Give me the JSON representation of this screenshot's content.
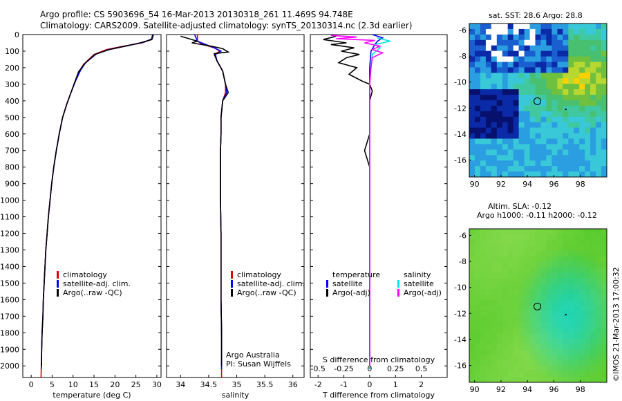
{
  "header": {
    "line1": "Argo profile: CS 5903696_54 16-Mar-2013 20130318_261 11.469S 94.748E",
    "line2": "Climatology: CARS2009. Satellite-adjusted climatology: synTS_20130314.nc (2.3d earlier)"
  },
  "colors": {
    "clim": "#e00000",
    "sat": "#0000ff",
    "argo": "#000000",
    "sat_cyan": "#00e0e0",
    "argo_mag": "#ff00ff"
  },
  "chart_data": [
    {
      "type": "line",
      "name": "temperature",
      "xlabel": "temperature (deg C)",
      "xlim": [
        -2,
        31
      ],
      "ylim": [
        0,
        2070
      ],
      "xticks": [
        "0",
        "5",
        "10",
        "15",
        "20",
        "25",
        "30"
      ],
      "xtick_values": [
        0,
        5,
        10,
        15,
        20,
        25,
        30
      ],
      "yticks": [
        "0",
        "100",
        "200",
        "300",
        "400",
        "500",
        "600",
        "700",
        "800",
        "900",
        "1000",
        "1100",
        "1200",
        "1300",
        "1400",
        "1500",
        "1600",
        "1700",
        "1800",
        "1900",
        "2000"
      ],
      "ytick_values": [
        0,
        100,
        200,
        300,
        400,
        500,
        600,
        700,
        800,
        900,
        1000,
        1100,
        1200,
        1300,
        1400,
        1500,
        1600,
        1700,
        1800,
        1900,
        2000
      ],
      "series": [
        {
          "name": "climatology",
          "color_key": "clim",
          "points": [
            [
              29.0,
              0
            ],
            [
              28.7,
              30
            ],
            [
              26.5,
              50
            ],
            [
              22,
              70
            ],
            [
              18,
              90
            ],
            [
              15,
              120
            ],
            [
              12.5,
              180
            ],
            [
              11.5,
              220
            ],
            [
              10.5,
              280
            ],
            [
              9.5,
              350
            ],
            [
              8.5,
              420
            ],
            [
              7.5,
              500
            ],
            [
              6.7,
              600
            ],
            [
              6.0,
              700
            ],
            [
              5.4,
              800
            ],
            [
              4.9,
              900
            ],
            [
              4.5,
              1000
            ],
            [
              4.1,
              1100
            ],
            [
              3.8,
              1200
            ],
            [
              3.5,
              1300
            ],
            [
              3.3,
              1400
            ],
            [
              3.1,
              1500
            ],
            [
              2.9,
              1600
            ],
            [
              2.8,
              1700
            ],
            [
              2.6,
              1800
            ],
            [
              2.5,
              1900
            ],
            [
              2.4,
              2000
            ],
            [
              2.35,
              2070
            ]
          ]
        },
        {
          "name": "satellite-adj. clim.",
          "color_key": "sat",
          "points": [
            [
              29.2,
              0
            ],
            [
              28.9,
              25
            ],
            [
              27,
              45
            ],
            [
              22.5,
              70
            ],
            [
              18.5,
              90
            ],
            [
              15.5,
              118
            ],
            [
              13,
              170
            ],
            [
              11.8,
              215
            ],
            [
              10.6,
              280
            ],
            [
              9.5,
              350
            ],
            [
              8.5,
              420
            ],
            [
              7.5,
              500
            ],
            [
              6.7,
              600
            ],
            [
              6.0,
              700
            ],
            [
              5.4,
              800
            ],
            [
              4.9,
              900
            ],
            [
              4.5,
              1000
            ],
            [
              4.1,
              1100
            ],
            [
              3.8,
              1200
            ],
            [
              3.5,
              1300
            ],
            [
              3.3,
              1400
            ],
            [
              3.1,
              1500
            ],
            [
              2.9,
              1600
            ],
            [
              2.8,
              1700
            ],
            [
              2.6,
              1800
            ],
            [
              2.5,
              1900
            ],
            [
              2.45,
              2000
            ],
            [
              2.4,
              2020
            ]
          ]
        },
        {
          "name": "Argo(..raw -QC)",
          "color_key": "argo",
          "points": [
            [
              29.0,
              0
            ],
            [
              28.8,
              30
            ],
            [
              26,
              50
            ],
            [
              22,
              72
            ],
            [
              18.5,
              92
            ],
            [
              15.2,
              120
            ],
            [
              12.8,
              175
            ],
            [
              11.3,
              225
            ],
            [
              10.5,
              280
            ],
            [
              9.5,
              350
            ],
            [
              8.5,
              420
            ],
            [
              7.5,
              500
            ],
            [
              6.7,
              600
            ],
            [
              6.0,
              700
            ],
            [
              5.4,
              800
            ],
            [
              4.9,
              900
            ],
            [
              4.5,
              1000
            ],
            [
              4.1,
              1100
            ],
            [
              3.8,
              1200
            ],
            [
              3.5,
              1300
            ],
            [
              3.3,
              1400
            ],
            [
              3.1,
              1500
            ],
            [
              2.9,
              1600
            ],
            [
              2.8,
              1700
            ],
            [
              2.6,
              1800
            ],
            [
              2.5,
              1900
            ],
            [
              2.45,
              2000
            ]
          ]
        }
      ],
      "legend": [
        "climatology",
        "satellite-adj. clim.",
        "Argo(..raw -QC)"
      ]
    },
    {
      "type": "line",
      "name": "salinity",
      "xlabel": "salinity",
      "xlim": [
        33.75,
        36.2
      ],
      "ylim": [
        0,
        2070
      ],
      "xticks": [
        "34",
        "34.5",
        "35",
        "35.5",
        "36"
      ],
      "xtick_values": [
        34,
        34.5,
        35,
        35.5,
        36
      ],
      "series": [
        {
          "name": "climatology",
          "color_key": "clim",
          "points": [
            [
              34.3,
              0
            ],
            [
              34.3,
              40
            ],
            [
              34.4,
              60
            ],
            [
              34.6,
              80
            ],
            [
              34.7,
              100
            ],
            [
              34.6,
              120
            ],
            [
              34.65,
              160
            ],
            [
              34.75,
              220
            ],
            [
              34.8,
              300
            ],
            [
              34.8,
              350
            ],
            [
              34.75,
              400
            ],
            [
              34.72,
              500
            ],
            [
              34.72,
              600
            ],
            [
              34.71,
              700
            ],
            [
              34.71,
              800
            ],
            [
              34.71,
              1000
            ],
            [
              34.72,
              1200
            ],
            [
              34.72,
              1400
            ],
            [
              34.72,
              1600
            ],
            [
              34.73,
              1800
            ],
            [
              34.73,
              2000
            ],
            [
              34.73,
              2070
            ]
          ]
        },
        {
          "name": "satellite-adj. clim.",
          "color_key": "sat",
          "points": [
            [
              34.25,
              0
            ],
            [
              34.3,
              40
            ],
            [
              34.45,
              60
            ],
            [
              34.6,
              80
            ],
            [
              34.72,
              100
            ],
            [
              34.62,
              120
            ],
            [
              34.65,
              160
            ],
            [
              34.75,
              220
            ],
            [
              34.8,
              300
            ],
            [
              34.82,
              350
            ],
            [
              34.75,
              400
            ],
            [
              34.72,
              500
            ],
            [
              34.72,
              600
            ],
            [
              34.71,
              700
            ],
            [
              34.71,
              800
            ],
            [
              34.71,
              1000
            ],
            [
              34.72,
              1200
            ],
            [
              34.72,
              1400
            ],
            [
              34.72,
              1600
            ],
            [
              34.73,
              1800
            ],
            [
              34.73,
              2000
            ],
            [
              34.73,
              2020
            ]
          ]
        },
        {
          "name": "Argo(..raw -QC)",
          "color_key": "argo",
          "points": [
            [
              34.0,
              10
            ],
            [
              34.15,
              25
            ],
            [
              34.3,
              40
            ],
            [
              34.2,
              50
            ],
            [
              34.55,
              70
            ],
            [
              34.75,
              85
            ],
            [
              34.85,
              105
            ],
            [
              34.6,
              115
            ],
            [
              34.65,
              160
            ],
            [
              34.75,
              220
            ],
            [
              34.8,
              300
            ],
            [
              34.85,
              350
            ],
            [
              34.75,
              400
            ],
            [
              34.72,
              500
            ],
            [
              34.72,
              600
            ],
            [
              34.71,
              700
            ],
            [
              34.71,
              800
            ],
            [
              34.71,
              1000
            ],
            [
              34.72,
              1200
            ],
            [
              34.72,
              1400
            ],
            [
              34.72,
              1600
            ],
            [
              34.73,
              1800
            ],
            [
              34.73,
              2000
            ]
          ]
        }
      ],
      "legend": [
        "climatology",
        "satellite-adj. clim.",
        "Argo(..raw -QC)"
      ],
      "annotation": [
        "Argo Australia",
        "PI: Susan Wijffels"
      ]
    },
    {
      "type": "line",
      "name": "differences",
      "xlabel": "T difference from climatology",
      "xlabel2": "S difference from climatology",
      "xlim": [
        -2.3,
        3
      ],
      "ylim": [
        0,
        2070
      ],
      "xticks": [
        "-2",
        "-1",
        "0",
        "1",
        "2"
      ],
      "xtick_values": [
        -2,
        -1,
        0,
        1,
        2
      ],
      "xticks_top": [
        "-0.5",
        "-0.25",
        "0",
        "0.25",
        "0.5"
      ],
      "xticks_top_positions": [
        -2,
        -1,
        0,
        1,
        2
      ],
      "series": [
        {
          "name": "temperature satellite",
          "color_key": "sat",
          "points": [
            [
              0.1,
              0
            ],
            [
              0.5,
              20
            ],
            [
              0.3,
              40
            ],
            [
              0.2,
              60
            ],
            [
              0.05,
              100
            ],
            [
              0,
              200
            ],
            [
              0,
              2020
            ]
          ]
        },
        {
          "name": "temperature Argo(-adj)",
          "color_key": "argo",
          "points": [
            [
              -1.3,
              10
            ],
            [
              -1.8,
              30
            ],
            [
              -0.9,
              50
            ],
            [
              -1.5,
              60
            ],
            [
              -0.6,
              80
            ],
            [
              -1.1,
              100
            ],
            [
              -0.4,
              120
            ],
            [
              -0.9,
              140
            ],
            [
              -1.2,
              170
            ],
            [
              -0.5,
              200
            ],
            [
              -0.8,
              240
            ],
            [
              -0.3,
              280
            ],
            [
              0,
              300
            ],
            [
              0.1,
              340
            ],
            [
              0,
              400
            ],
            [
              0,
              500
            ],
            [
              0,
              600
            ],
            [
              -0.1,
              650
            ],
            [
              -0.2,
              700
            ],
            [
              0,
              800
            ],
            [
              0,
              1000
            ],
            [
              0,
              1200
            ],
            [
              0,
              1400
            ],
            [
              0,
              1600
            ],
            [
              0,
              1800
            ],
            [
              0,
              2000
            ]
          ]
        },
        {
          "name": "salinity satellite",
          "color_key": "sat_cyan",
          "points": [
            [
              0.3,
              20
            ],
            [
              0.8,
              40
            ],
            [
              0.2,
              60
            ],
            [
              0.4,
              80
            ],
            [
              0.1,
              120
            ],
            [
              0.05,
              200
            ],
            [
              0,
              300
            ],
            [
              0,
              2020
            ]
          ]
        },
        {
          "name": "salinity Argo(-adj)",
          "color_key": "argo_mag",
          "points": [
            [
              -1.5,
              5
            ],
            [
              -0.5,
              15
            ],
            [
              -1.3,
              25
            ],
            [
              0.2,
              35
            ],
            [
              -0.2,
              50
            ],
            [
              0.4,
              70
            ],
            [
              0.1,
              90
            ],
            [
              0.5,
              110
            ],
            [
              0.1,
              140
            ],
            [
              0.05,
              200
            ],
            [
              0,
              300
            ],
            [
              0,
              2000
            ]
          ]
        }
      ],
      "legend_left": {
        "heading": "temperature",
        "items": [
          "satellite",
          "Argo(-adj)"
        ]
      },
      "legend_right": {
        "heading": "salinity",
        "items": [
          "satellite",
          "Argo(-adj)"
        ]
      }
    },
    {
      "type": "heatmap",
      "name": "sst-map",
      "title": "sat. SST: 28.6 Argo: 28.8",
      "xlim": [
        89.6,
        100
      ],
      "ylim": [
        -17.3,
        -5.5
      ],
      "xticks": [
        "90",
        "92",
        "94",
        "96",
        "98"
      ],
      "xtick_values": [
        90,
        92,
        94,
        96,
        98
      ],
      "yticks": [
        "-6",
        "-8",
        "-10",
        "-12",
        "-14",
        "-16"
      ],
      "ytick_values": [
        -6,
        -8,
        -10,
        -12,
        -14,
        -16
      ],
      "marker": {
        "lon": 94.75,
        "lat": -11.47
      }
    },
    {
      "type": "heatmap",
      "name": "sla-map",
      "title": "Altim. SLA: -0.12",
      "title2": "Argo h1000: -0.11 h2000: -0.12",
      "xlim": [
        89.6,
        100
      ],
      "ylim": [
        -17.3,
        -5.5
      ],
      "xticks": [
        "90",
        "92",
        "94",
        "96",
        "98"
      ],
      "xtick_values": [
        90,
        92,
        94,
        96,
        98
      ],
      "yticks": [
        "-6",
        "-8",
        "-10",
        "-12",
        "-14",
        "-16"
      ],
      "ytick_values": [
        -6,
        -8,
        -10,
        -12,
        -14,
        -16
      ],
      "marker": {
        "lon": 94.75,
        "lat": -11.47
      }
    }
  ],
  "side_label": "©IMOS 21-Mar-2013 17:00:32"
}
